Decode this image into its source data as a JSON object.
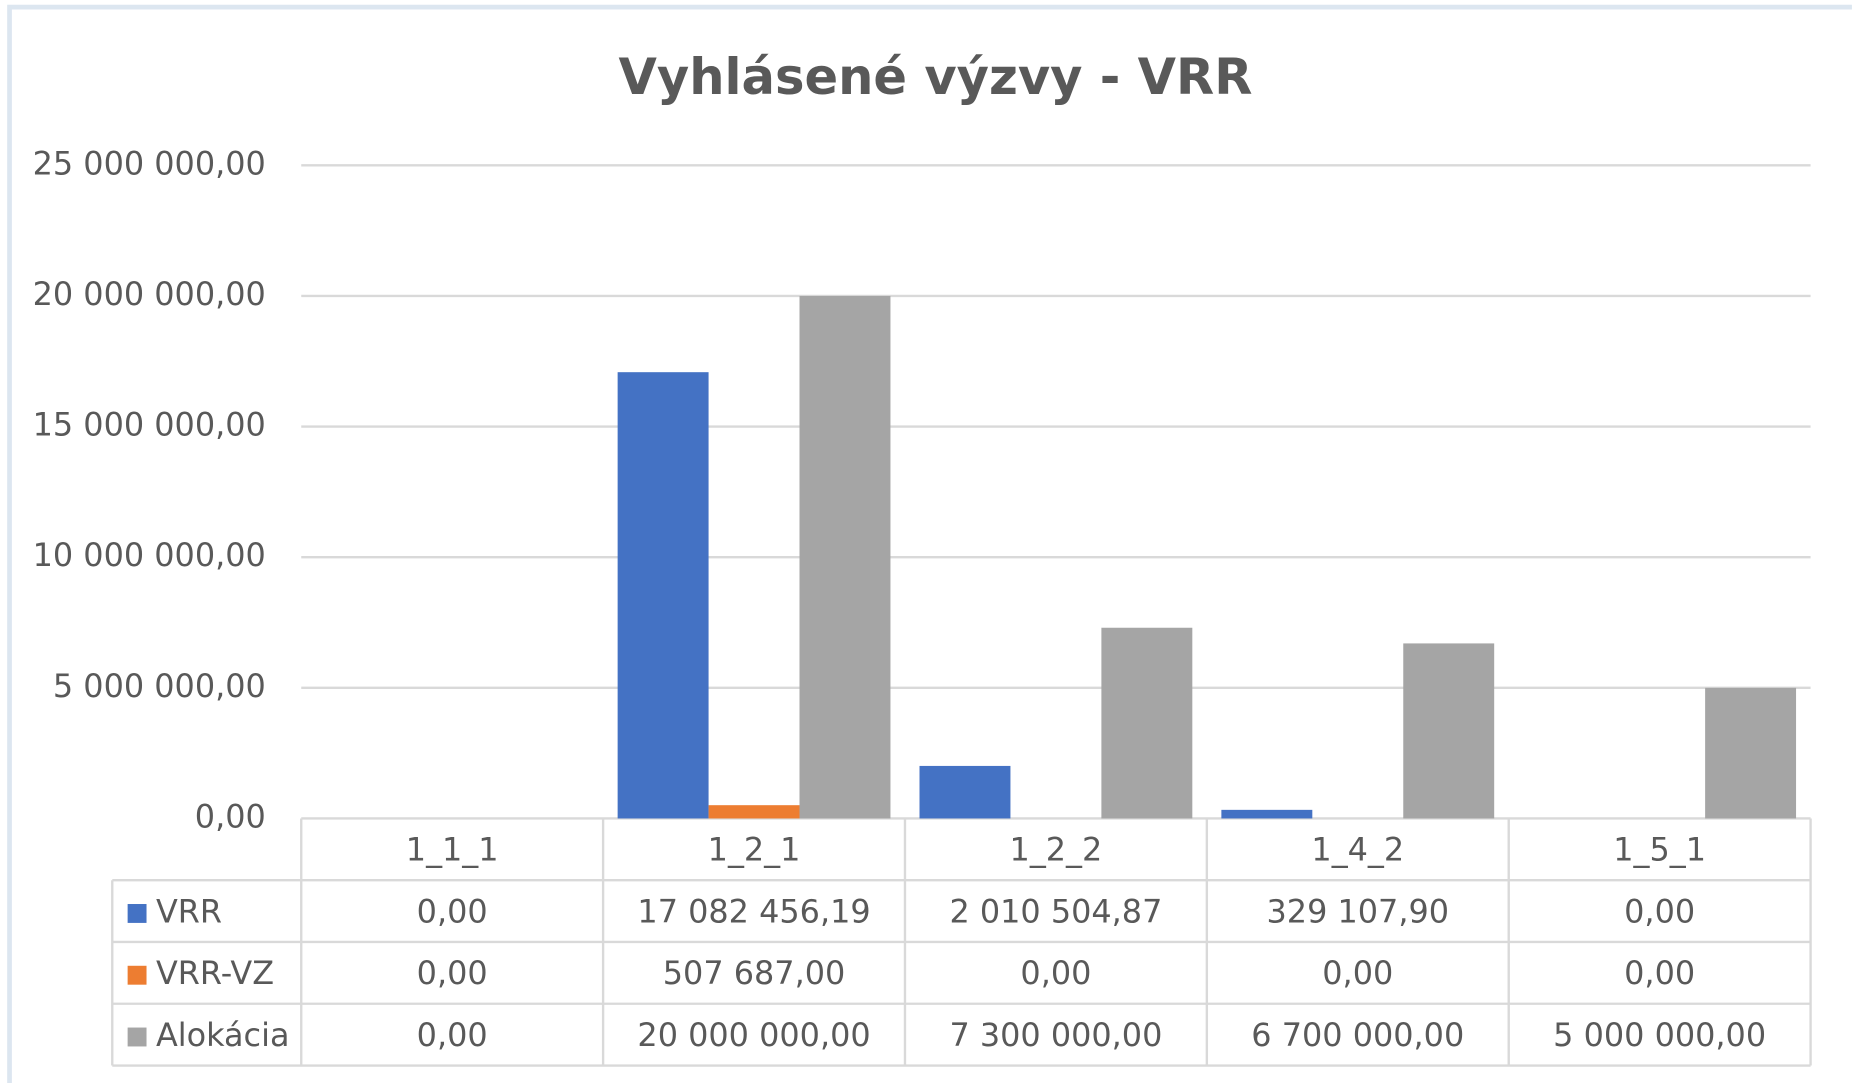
{
  "chart_data": {
    "type": "bar",
    "title": "Vyhlásené výzvy - VRR",
    "categories": [
      "1_1_1",
      "1_2_1",
      "1_2_2",
      "1_4_2",
      "1_5_1"
    ],
    "series": [
      {
        "name": "VRR",
        "color": "#4472c4",
        "values": [
          0,
          17082456.19,
          2010504.87,
          329107.9,
          0
        ],
        "value_labels": [
          "0,00",
          "17 082 456,19",
          "2 010 504,87",
          "329 107,90",
          "0,00"
        ]
      },
      {
        "name": "VRR-VZ",
        "color": "#ed7d31",
        "values": [
          0,
          507687,
          0,
          0,
          0
        ],
        "value_labels": [
          "0,00",
          "507 687,00",
          "0,00",
          "0,00",
          "0,00"
        ]
      },
      {
        "name": "Alokácia",
        "color": "#a5a5a5",
        "values": [
          0,
          20000000,
          7300000,
          6700000,
          5000000
        ],
        "value_labels": [
          "0,00",
          "20 000 000,00",
          "7 300 000,00",
          "6 700 000,00",
          "5 000 000,00"
        ]
      }
    ],
    "ylim": [
      0,
      25000000
    ],
    "yticks": [
      {
        "value": 0,
        "label": "0,00"
      },
      {
        "value": 5000000,
        "label": "5 000 000,00"
      },
      {
        "value": 10000000,
        "label": "10 000 000,00"
      },
      {
        "value": 15000000,
        "label": "15 000 000,00"
      },
      {
        "value": 20000000,
        "label": "20 000 000,00"
      },
      {
        "value": 25000000,
        "label": "25 000 000,00"
      }
    ],
    "grid": true,
    "legend": "table"
  }
}
